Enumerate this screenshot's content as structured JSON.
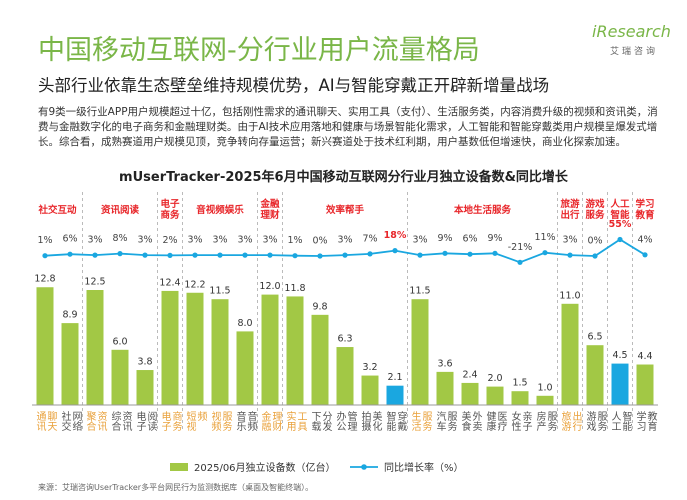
{
  "logo": {
    "name": "iResearch",
    "sub": "艾瑞咨询"
  },
  "title": "中国移动互联网-分行业用户流量格局",
  "subtitle": "头部行业依靠生态壁垒维持规模优势，AI与智能穿戴正开辟新增量战场",
  "paragraph": "有9类一级行业APP用户规模超过十亿，包括刚性需求的通讯聊天、实用工具（支付）、生活服务类，内容消费升级的视频和资讯类，消费与金融数字化的电子商务和金融理财类。由于AI技术应用落地和健康与场景智能化需求，人工智能和智能穿戴类用户规模呈爆发式增长。综合看，成熟赛道用户规模见顶，竞争转向存量运营；新兴赛道处于技术红利期，用户基数低但增速快，商业化探索加速。",
  "source": "来源：艾瑞咨询UserTracker多平台网民行为监测数据库（桌面及智能终端）。",
  "chart_data": {
    "type": "combo",
    "title": "mUserTracker-2025年6月中国移动互联网分行业月独立设备数&同比增长",
    "group_labels": [
      "社交互动",
      null,
      "资讯阅读",
      null,
      null,
      "电子商务",
      "音视频娱乐",
      null,
      null,
      "金融理财",
      "效率帮手",
      null,
      null,
      null,
      null,
      "本地生活服务",
      null,
      null,
      null,
      null,
      null,
      "旅游出行",
      "游戏服务",
      "人工智能",
      "学习教育"
    ],
    "categories": [
      "通讯聊天",
      "社交网络",
      "聚合资讯",
      "综合资讯",
      "电子阅读",
      "电子商务",
      "短视频",
      "视频服务",
      "音乐音频",
      "金融理财",
      "实用工具",
      "下载分发",
      "办公管理",
      "拍摄美化",
      "智能穿戴",
      "生活服务",
      "汽车服务",
      "美食外卖",
      "健康医疗",
      "女性亲子",
      "房产服务",
      "旅游出行",
      "游戏服务",
      "人工智能",
      "学习教育"
    ],
    "category_label_colors": [
      "#e9a13b",
      "#555555",
      "#e9a13b",
      "#555555",
      "#555555",
      "#e9a13b",
      "#e9a13b",
      "#e9a13b",
      "#555555",
      "#e9a13b",
      "#e9a13b",
      "#555555",
      "#555555",
      "#555555",
      "#555555",
      "#e9a13b",
      "#555555",
      "#555555",
      "#555555",
      "#555555",
      "#555555",
      "#e9a13b",
      "#555555",
      "#555555",
      "#555555"
    ],
    "series": [
      {
        "name": "2025/06月独立设备数（亿台）",
        "type": "bar",
        "color": "#a2c845",
        "colors": [
          "#a2c845",
          "#a2c845",
          "#a2c845",
          "#a2c845",
          "#a2c845",
          "#a2c845",
          "#a2c845",
          "#a2c845",
          "#a2c845",
          "#a2c845",
          "#a2c845",
          "#a2c845",
          "#a2c845",
          "#a2c845",
          "#1aa7e0",
          "#a2c845",
          "#a2c845",
          "#a2c845",
          "#a2c845",
          "#a2c845",
          "#a2c845",
          "#a2c845",
          "#a2c845",
          "#1aa7e0",
          "#a2c845"
        ],
        "values": [
          12.8,
          8.9,
          12.5,
          6.0,
          3.8,
          12.4,
          12.2,
          11.5,
          8.0,
          12.0,
          11.8,
          9.8,
          6.3,
          3.2,
          2.1,
          11.5,
          3.6,
          2.4,
          2.0,
          1.5,
          1.0,
          11.0,
          6.5,
          4.5,
          4.4
        ],
        "value_labels": [
          "12.8",
          "8.9",
          "12.5",
          "6.0",
          "3.8",
          "12.4",
          "12.2",
          "11.5",
          "8.0",
          "12.0",
          "11.8",
          "9.8",
          "6.3",
          "3.2",
          "2.1",
          "11.5",
          "3.6",
          "2.4",
          "2.0",
          "1.5",
          "1.0",
          "11.0",
          "6.5",
          "4.5",
          "4.4"
        ]
      },
      {
        "name": "同比增长率（%）",
        "type": "line",
        "color": "#1aa7e0",
        "values": [
          1,
          6,
          3,
          8,
          3,
          2,
          3,
          3,
          3,
          3,
          1,
          0,
          3,
          7,
          18,
          3,
          9,
          6,
          9,
          -21,
          11,
          3,
          0,
          55,
          4
        ],
        "value_labels": [
          "1%",
          "6%",
          "3%",
          "8%",
          "3%",
          "2%",
          "3%",
          "3%",
          "3%",
          "3%",
          "1%",
          "0%",
          "3%",
          "7%",
          "18%",
          "3%",
          "9%",
          "6%",
          "9%",
          "-21%",
          "11%",
          "3%",
          "0%",
          "55%",
          "4%"
        ],
        "label_colors": [
          "#444444",
          "#444444",
          "#444444",
          "#444444",
          "#444444",
          "#444444",
          "#444444",
          "#444444",
          "#444444",
          "#444444",
          "#444444",
          "#444444",
          "#444444",
          "#444444",
          "#e8262a",
          "#444444",
          "#444444",
          "#444444",
          "#444444",
          "#444444",
          "#444444",
          "#444444",
          "#444444",
          "#e8262a",
          "#444444"
        ]
      }
    ]
  }
}
